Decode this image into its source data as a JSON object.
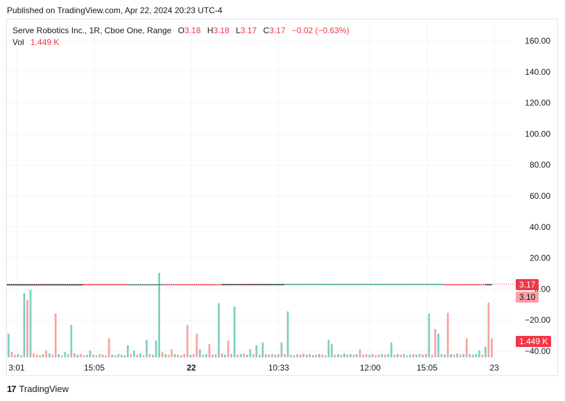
{
  "header": {
    "published": "Published on TradingView.com, Apr 22, 2024 20:23 UTC-4"
  },
  "legend": {
    "symbol": "Serve Robotics Inc., 1R, Cboe One, Range",
    "o_label": "O",
    "o_value": "3.18",
    "h_label": "H",
    "h_value": "3.18",
    "l_label": "L",
    "l_value": "3.17",
    "c_label": "C",
    "c_value": "3.17",
    "change": "−0.02 (−0.63%)",
    "vol_label": "Vol",
    "vol_value": "1.449 K"
  },
  "tags": {
    "last_price": "3.17",
    "prev_price": "3.10",
    "volume": "1.449 K"
  },
  "footer": {
    "brand": "TradingView",
    "mark": "17"
  },
  "colors": {
    "up": "#089981",
    "down": "#f23645",
    "up_volume": "#7ccfc0",
    "down_volume": "#f7a29f",
    "grid": "#f0f3fa"
  },
  "chart_data": {
    "type": "line",
    "y_ticks": [
      "160.00",
      "140.00",
      "120.00",
      "100.00",
      "80.00",
      "60.00",
      "40.00",
      "20.00",
      "0.00",
      "−20.00",
      "−40.00"
    ],
    "y_tick_values": [
      160,
      140,
      120,
      100,
      80,
      60,
      40,
      20,
      0,
      -20,
      -40
    ],
    "ylim": [
      -40,
      160
    ],
    "x_ticks": [
      "3:01",
      "15:05",
      "22",
      "10:33",
      "12:00",
      "15:05",
      "23"
    ],
    "x_tick_bold": [
      false,
      false,
      true,
      false,
      false,
      false,
      false
    ],
    "price_level": 3.17,
    "volume_series": [
      {
        "v": 0.35,
        "d": "up"
      },
      {
        "v": 0.08,
        "d": "down"
      },
      {
        "v": 0.04,
        "d": "down"
      },
      {
        "v": 0.05,
        "d": "up"
      },
      {
        "v": 0.03,
        "d": "down"
      },
      {
        "v": 0.95,
        "d": "up"
      },
      {
        "v": 0.85,
        "d": "down"
      },
      {
        "v": 1.0,
        "d": "up"
      },
      {
        "v": 0.06,
        "d": "down"
      },
      {
        "v": 0.04,
        "d": "down"
      },
      {
        "v": 0.03,
        "d": "down"
      },
      {
        "v": 0.05,
        "d": "up"
      },
      {
        "v": 0.1,
        "d": "down"
      },
      {
        "v": 0.06,
        "d": "up"
      },
      {
        "v": 0.04,
        "d": "down"
      },
      {
        "v": 0.65,
        "d": "down"
      },
      {
        "v": 0.05,
        "d": "up"
      },
      {
        "v": 0.03,
        "d": "down"
      },
      {
        "v": 0.08,
        "d": "up"
      },
      {
        "v": 0.05,
        "d": "down"
      },
      {
        "v": 0.48,
        "d": "up"
      },
      {
        "v": 0.06,
        "d": "down"
      },
      {
        "v": 0.04,
        "d": "up"
      },
      {
        "v": 0.05,
        "d": "down"
      },
      {
        "v": 0.03,
        "d": "up"
      },
      {
        "v": 0.04,
        "d": "down"
      },
      {
        "v": 0.1,
        "d": "up"
      },
      {
        "v": 0.04,
        "d": "down"
      },
      {
        "v": 0.03,
        "d": "up"
      },
      {
        "v": 0.05,
        "d": "down"
      },
      {
        "v": 0.04,
        "d": "up"
      },
      {
        "v": 0.03,
        "d": "down"
      },
      {
        "v": 0.28,
        "d": "down"
      },
      {
        "v": 0.04,
        "d": "up"
      },
      {
        "v": 0.03,
        "d": "down"
      },
      {
        "v": 0.05,
        "d": "up"
      },
      {
        "v": 0.04,
        "d": "down"
      },
      {
        "v": 0.03,
        "d": "up"
      },
      {
        "v": 0.18,
        "d": "up"
      },
      {
        "v": 0.05,
        "d": "down"
      },
      {
        "v": 0.1,
        "d": "up"
      },
      {
        "v": 0.04,
        "d": "down"
      },
      {
        "v": 0.06,
        "d": "up"
      },
      {
        "v": 0.03,
        "d": "down"
      },
      {
        "v": 0.26,
        "d": "up"
      },
      {
        "v": 0.05,
        "d": "down"
      },
      {
        "v": 0.04,
        "d": "up"
      },
      {
        "v": 0.25,
        "d": "up"
      },
      {
        "v": 1.25,
        "d": "up"
      },
      {
        "v": 0.08,
        "d": "down"
      },
      {
        "v": 0.05,
        "d": "up"
      },
      {
        "v": 0.04,
        "d": "down"
      },
      {
        "v": 0.12,
        "d": "down"
      },
      {
        "v": 0.05,
        "d": "up"
      },
      {
        "v": 0.04,
        "d": "down"
      },
      {
        "v": 0.03,
        "d": "up"
      },
      {
        "v": 0.05,
        "d": "down"
      },
      {
        "v": 0.48,
        "d": "down"
      },
      {
        "v": 0.04,
        "d": "up"
      },
      {
        "v": 0.05,
        "d": "down"
      },
      {
        "v": 0.35,
        "d": "down"
      },
      {
        "v": 0.12,
        "d": "up"
      },
      {
        "v": 0.04,
        "d": "down"
      },
      {
        "v": 0.05,
        "d": "up"
      },
      {
        "v": 0.2,
        "d": "down"
      },
      {
        "v": 0.04,
        "d": "up"
      },
      {
        "v": 0.05,
        "d": "down"
      },
      {
        "v": 0.8,
        "d": "up"
      },
      {
        "v": 0.06,
        "d": "down"
      },
      {
        "v": 0.04,
        "d": "up"
      },
      {
        "v": 0.25,
        "d": "down"
      },
      {
        "v": 0.05,
        "d": "up"
      },
      {
        "v": 0.75,
        "d": "up"
      },
      {
        "v": 0.04,
        "d": "down"
      },
      {
        "v": 0.05,
        "d": "up"
      },
      {
        "v": 0.06,
        "d": "down"
      },
      {
        "v": 0.04,
        "d": "up"
      },
      {
        "v": 0.12,
        "d": "up"
      },
      {
        "v": 0.05,
        "d": "down"
      },
      {
        "v": 0.18,
        "d": "up"
      },
      {
        "v": 0.04,
        "d": "down"
      },
      {
        "v": 0.22,
        "d": "up"
      },
      {
        "v": 0.05,
        "d": "down"
      },
      {
        "v": 0.04,
        "d": "up"
      },
      {
        "v": 0.05,
        "d": "down"
      },
      {
        "v": 0.04,
        "d": "up"
      },
      {
        "v": 0.05,
        "d": "down"
      },
      {
        "v": 0.22,
        "d": "up"
      },
      {
        "v": 0.05,
        "d": "down"
      },
      {
        "v": 0.68,
        "d": "up"
      },
      {
        "v": 0.04,
        "d": "down"
      },
      {
        "v": 0.03,
        "d": "up"
      },
      {
        "v": 0.05,
        "d": "down"
      },
      {
        "v": 0.04,
        "d": "up"
      },
      {
        "v": 0.06,
        "d": "down"
      },
      {
        "v": 0.04,
        "d": "up"
      },
      {
        "v": 0.05,
        "d": "down"
      },
      {
        "v": 0.03,
        "d": "up"
      },
      {
        "v": 0.04,
        "d": "down"
      },
      {
        "v": 0.05,
        "d": "up"
      },
      {
        "v": 0.04,
        "d": "down"
      },
      {
        "v": 0.03,
        "d": "up"
      },
      {
        "v": 0.26,
        "d": "up"
      },
      {
        "v": 0.2,
        "d": "up"
      },
      {
        "v": 0.04,
        "d": "down"
      },
      {
        "v": 0.05,
        "d": "up"
      },
      {
        "v": 0.04,
        "d": "down"
      },
      {
        "v": 0.06,
        "d": "up"
      },
      {
        "v": 0.04,
        "d": "down"
      },
      {
        "v": 0.05,
        "d": "up"
      },
      {
        "v": 0.04,
        "d": "down"
      },
      {
        "v": 0.05,
        "d": "up"
      },
      {
        "v": 0.12,
        "d": "down"
      },
      {
        "v": 0.04,
        "d": "up"
      },
      {
        "v": 0.05,
        "d": "down"
      },
      {
        "v": 0.04,
        "d": "up"
      },
      {
        "v": 0.05,
        "d": "down"
      },
      {
        "v": 0.03,
        "d": "up"
      },
      {
        "v": 0.04,
        "d": "down"
      },
      {
        "v": 0.05,
        "d": "up"
      },
      {
        "v": 0.04,
        "d": "down"
      },
      {
        "v": 0.05,
        "d": "up"
      },
      {
        "v": 0.22,
        "d": "up"
      },
      {
        "v": 0.04,
        "d": "down"
      },
      {
        "v": 0.05,
        "d": "up"
      },
      {
        "v": 0.04,
        "d": "down"
      },
      {
        "v": 0.05,
        "d": "up"
      },
      {
        "v": 0.03,
        "d": "down"
      },
      {
        "v": 0.04,
        "d": "up"
      },
      {
        "v": 0.05,
        "d": "down"
      },
      {
        "v": 0.04,
        "d": "up"
      },
      {
        "v": 0.05,
        "d": "down"
      },
      {
        "v": 0.04,
        "d": "up"
      },
      {
        "v": 0.05,
        "d": "down"
      },
      {
        "v": 0.65,
        "d": "up"
      },
      {
        "v": 0.04,
        "d": "down"
      },
      {
        "v": 0.42,
        "d": "down"
      },
      {
        "v": 0.35,
        "d": "up"
      },
      {
        "v": 0.05,
        "d": "down"
      },
      {
        "v": 0.04,
        "d": "up"
      },
      {
        "v": 0.66,
        "d": "down"
      },
      {
        "v": 0.05,
        "d": "up"
      },
      {
        "v": 0.04,
        "d": "down"
      },
      {
        "v": 0.06,
        "d": "up"
      },
      {
        "v": 0.04,
        "d": "down"
      },
      {
        "v": 0.05,
        "d": "up"
      },
      {
        "v": 0.28,
        "d": "down"
      },
      {
        "v": 0.05,
        "d": "up"
      },
      {
        "v": 0.04,
        "d": "down"
      },
      {
        "v": 0.05,
        "d": "up"
      },
      {
        "v": 0.1,
        "d": "up"
      },
      {
        "v": 0.04,
        "d": "down"
      },
      {
        "v": 0.16,
        "d": "up"
      },
      {
        "v": 0.81,
        "d": "down"
      },
      {
        "v": 0.28,
        "d": "down"
      }
    ]
  }
}
